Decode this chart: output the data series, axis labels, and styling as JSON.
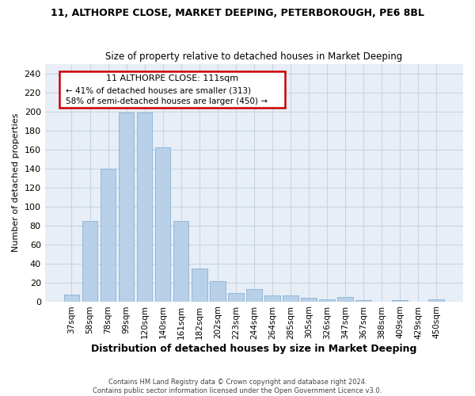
{
  "title": "11, ALTHORPE CLOSE, MARKET DEEPING, PETERBOROUGH, PE6 8BL",
  "subtitle": "Size of property relative to detached houses in Market Deeping",
  "xlabel": "Distribution of detached houses by size in Market Deeping",
  "ylabel": "Number of detached properties",
  "categories": [
    "37sqm",
    "58sqm",
    "78sqm",
    "99sqm",
    "120sqm",
    "140sqm",
    "161sqm",
    "182sqm",
    "202sqm",
    "223sqm",
    "244sqm",
    "264sqm",
    "285sqm",
    "305sqm",
    "326sqm",
    "347sqm",
    "367sqm",
    "388sqm",
    "409sqm",
    "429sqm",
    "450sqm"
  ],
  "values": [
    7,
    85,
    140,
    199,
    199,
    162,
    85,
    35,
    21,
    9,
    13,
    6,
    6,
    4,
    2,
    5,
    1,
    0,
    1,
    0,
    2
  ],
  "bar_color": "#b8d0e8",
  "bar_edge_color": "#7aaad0",
  "annotation_text_line1": "11 ALTHORPE CLOSE: 111sqm",
  "annotation_text_line2": "← 41% of detached houses are smaller (313)",
  "annotation_text_line3": "58% of semi-detached houses are larger (450) →",
  "annotation_box_edgecolor": "#cc0000",
  "ylim_max": 250,
  "ytick_step": 20,
  "grid_color": "#c8d4e4",
  "bg_color": "#e8eef6",
  "footer_line1": "Contains HM Land Registry data © Crown copyright and database right 2024.",
  "footer_line2": "Contains public sector information licensed under the Open Government Licence v3.0."
}
